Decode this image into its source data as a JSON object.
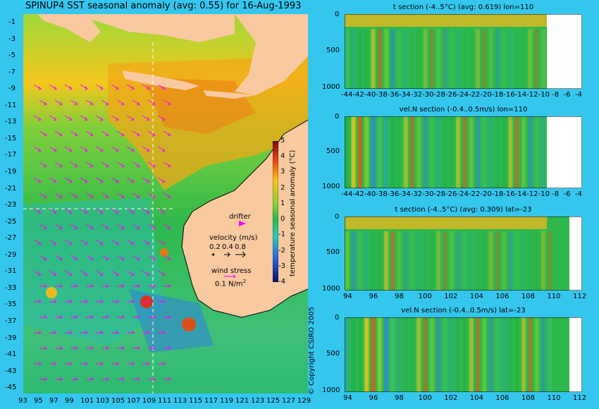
{
  "main_title": "SPINUP4 SST seasonal anomaly (avg: 0.55) for 16-Aug-1993",
  "map": {
    "lat_ticks": [
      "-1",
      "-3",
      "-5",
      "-7",
      "-9",
      "-11",
      "-13",
      "-15",
      "-17",
      "-19",
      "-21",
      "-23",
      "-25",
      "-27",
      "-29",
      "-31",
      "-33",
      "-35",
      "-37",
      "-39",
      "-41",
      "-43",
      "-45"
    ],
    "lon_ticks": [
      "93",
      "95",
      "97",
      "99",
      "101",
      "103",
      "105",
      "107",
      "109",
      "111",
      "113",
      "115",
      "117",
      "119",
      "121",
      "123",
      "125",
      "127",
      "129"
    ],
    "colorbar": {
      "label": "temperature seasonal anomaly (°C)",
      "ticks": [
        "5",
        "4",
        "3",
        "2",
        "1",
        "0",
        "-1",
        "-2",
        "-3",
        "-4"
      ]
    },
    "legend": {
      "drifter": "drifter",
      "velocity_label": "velocity (m/s)",
      "velocity_scale": [
        "0.2",
        "0.4",
        "0.8"
      ],
      "wind_label": "wind stress",
      "wind_value": "0.1 N/m",
      "wind_unit_sup": "2"
    },
    "copyright": "© Copyright CSIRO 2005",
    "colors": {
      "land": "#f9c9a0",
      "ocean_base": "#2ebc4a",
      "arrows": "#ff00ff",
      "background": "#35c6ee"
    }
  },
  "panels": [
    {
      "title": "t section (-4..5°C) (avg: 0.619) lon=110",
      "y_ticks": [
        "0",
        "500",
        "1000"
      ],
      "x_ticks": [
        "-44",
        "-42",
        "-40",
        "-38",
        "-36",
        "-34",
        "-32",
        "-30",
        "-28",
        "-26",
        "-24",
        "-22",
        "-20",
        "-18",
        "-16",
        "-14",
        "-12",
        "-10",
        "-8",
        "-6",
        "-4"
      ]
    },
    {
      "title": "vel.N section (-0.4..0.5m/s) lon=110",
      "y_ticks": [
        "0",
        "500",
        "1000"
      ],
      "x_ticks": [
        "-44",
        "-42",
        "-40",
        "-38",
        "-36",
        "-34",
        "-32",
        "-30",
        "-28",
        "-26",
        "-24",
        "-22",
        "-20",
        "-18",
        "-16",
        "-14",
        "-12",
        "-10",
        "-8",
        "-6",
        "-4"
      ]
    },
    {
      "title": "t section (-4..5°C) (avg: 0.309) lat=-23",
      "y_ticks": [
        "0",
        "500",
        "1000"
      ],
      "x_ticks": [
        "94",
        "96",
        "98",
        "100",
        "102",
        "104",
        "106",
        "108",
        "110",
        "112"
      ]
    },
    {
      "title": "vel.N section (-0.4..0.5m/s) lat=-23",
      "y_ticks": [
        "0",
        "500",
        "1000"
      ],
      "x_ticks": [
        "94",
        "96",
        "98",
        "100",
        "102",
        "104",
        "106",
        "108",
        "110",
        "112"
      ]
    }
  ]
}
